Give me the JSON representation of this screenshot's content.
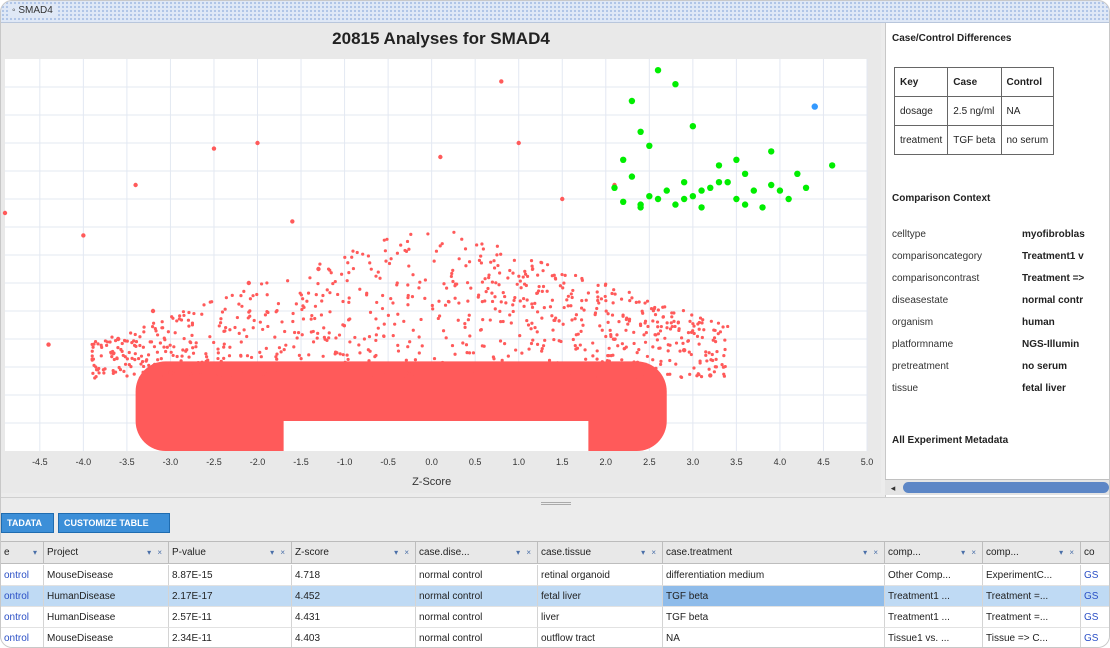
{
  "window": {
    "title": "SMAD4"
  },
  "chart_data": {
    "type": "scatter",
    "title": "20815 Analyses for SMAD4",
    "xlabel": "Z-Score",
    "ylabel": "",
    "xlim": [
      -4.9,
      5.0
    ],
    "x_ticks": [
      "-4.5",
      "-4.0",
      "-3.5",
      "-3.0",
      "-2.5",
      "-2.0",
      "-1.5",
      "-1.0",
      "-0.5",
      "0.0",
      "0.5",
      "1.0",
      "1.5",
      "2.0",
      "2.5",
      "3.0",
      "3.5",
      "4.0",
      "4.5",
      "5.0"
    ],
    "grid": true,
    "series": [
      {
        "color": "#ff5a5a",
        "values": [
          [
            -4.9,
            8.5
          ],
          [
            -4.0,
            7.7
          ],
          [
            -3.6,
            4.0
          ],
          [
            -4.4,
            3.8
          ],
          [
            -3.4,
            9.5
          ],
          [
            -3.2,
            5.0
          ],
          [
            -2.1,
            6.0
          ],
          [
            -3.0,
            2.8
          ],
          [
            -2.5,
            10.8
          ],
          [
            -2.0,
            11.0
          ],
          [
            -1.6,
            8.2
          ],
          [
            -1.3,
            6.5
          ],
          [
            0.1,
            10.5
          ],
          [
            0.8,
            13.2
          ],
          [
            1.0,
            11.0
          ],
          [
            1.5,
            9.0
          ],
          [
            2.1,
            9.5
          ],
          [
            2.9,
            3.6
          ],
          [
            3.2,
            2.7
          ]
        ]
      },
      {
        "color": "#00ee00",
        "values": [
          [
            2.1,
            9.4
          ],
          [
            2.2,
            8.9
          ],
          [
            2.3,
            9.8
          ],
          [
            2.4,
            8.7
          ],
          [
            2.5,
            9.1
          ],
          [
            2.3,
            12.5
          ],
          [
            2.4,
            11.4
          ],
          [
            2.5,
            10.9
          ],
          [
            2.6,
            13.6
          ],
          [
            2.7,
            9.3
          ],
          [
            2.8,
            8.8
          ],
          [
            2.9,
            9.6
          ],
          [
            3.0,
            9.1
          ],
          [
            3.1,
            8.7
          ],
          [
            3.2,
            9.4
          ],
          [
            3.3,
            10.2
          ],
          [
            3.4,
            9.6
          ],
          [
            3.5,
            9.0
          ],
          [
            3.6,
            8.8
          ],
          [
            3.7,
            9.3
          ],
          [
            3.8,
            8.7
          ],
          [
            3.9,
            9.5
          ],
          [
            4.1,
            9.0
          ],
          [
            4.3,
            9.4
          ],
          [
            2.8,
            13.1
          ],
          [
            3.0,
            11.6
          ],
          [
            3.5,
            10.4
          ],
          [
            3.6,
            9.9
          ],
          [
            4.2,
            9.9
          ],
          [
            3.9,
            10.7
          ],
          [
            2.4,
            8.8
          ],
          [
            2.6,
            9.0
          ],
          [
            2.9,
            9.0
          ],
          [
            3.1,
            9.3
          ],
          [
            3.3,
            9.6
          ],
          [
            4.0,
            9.3
          ],
          [
            4.6,
            10.2
          ],
          [
            2.2,
            10.4
          ]
        ],
        "name": ""
      },
      {
        "color": "#3399ff",
        "values": [
          [
            4.4,
            12.3
          ]
        ]
      }
    ]
  },
  "casecontrol": {
    "heading": "Case/Control Differences",
    "columns": [
      "Key",
      "Case",
      "Control"
    ],
    "rows": [
      [
        "dosage",
        "2.5 ng/ml",
        "NA"
      ],
      [
        "treatment",
        "TGF beta",
        "no serum"
      ]
    ]
  },
  "comparison": {
    "heading": "Comparison Context",
    "rows": [
      {
        "key": "celltype",
        "value": "myofibroblas"
      },
      {
        "key": "comparisoncategory",
        "value": "Treatment1 v"
      },
      {
        "key": "comparisoncontrast",
        "value": "Treatment =>"
      },
      {
        "key": "diseasestate",
        "value": "normal contr"
      },
      {
        "key": "organism",
        "value": "human"
      },
      {
        "key": "platformname",
        "value": "NGS-Illumin"
      },
      {
        "key": "pretreatment",
        "value": "no serum"
      },
      {
        "key": "tissue",
        "value": "fetal liver"
      }
    ]
  },
  "metadata": {
    "heading": "All Experiment Metadata"
  },
  "toolbar": {
    "metadata_btn": "TADATA",
    "customize_btn": "CUSTOMIZE TABLE"
  },
  "table": {
    "headers": [
      "e",
      "Project",
      "P-value",
      "Z-score",
      "case.dise...",
      "case.tissue",
      "case.treatment",
      "comp...",
      "comp...",
      "co"
    ],
    "rows": [
      [
        "ontrol",
        "MouseDisease",
        "8.87E-15",
        "4.718",
        "normal control",
        "retinal organoid",
        "differentiation medium",
        "Other Comp...",
        "ExperimentC...",
        "GS"
      ],
      [
        "ontrol",
        "HumanDisease",
        "2.17E-17",
        "4.452",
        "normal control",
        "fetal liver",
        "TGF beta",
        "Treatment1 ...",
        "Treatment =...",
        "GS"
      ],
      [
        "ontrol",
        "HumanDisease",
        "2.57E-11",
        "4.431",
        "normal control",
        "liver",
        "TGF beta",
        "Treatment1 ...",
        "Treatment =...",
        "GS"
      ],
      [
        "ontrol",
        "MouseDisease",
        "2.34E-11",
        "4.403",
        "normal control",
        "outflow tract",
        "NA",
        "Tissue1 vs. ...",
        "Tissue => C...",
        "GS"
      ]
    ]
  }
}
